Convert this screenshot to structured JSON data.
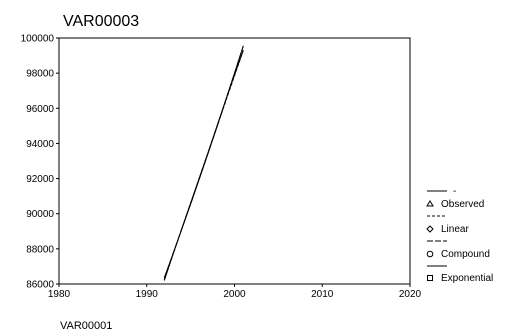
{
  "chart_data": {
    "type": "line",
    "title": "VAR00003",
    "xlabel": "VAR00001",
    "ylabel": "",
    "xlim": [
      1980,
      2020
    ],
    "ylim": [
      86000,
      100000
    ],
    "x_ticks": [
      "1980",
      "1990",
      "2000",
      "2010",
      "2020"
    ],
    "y_ticks": [
      "86000",
      "88000",
      "90000",
      "92000",
      "94000",
      "96000",
      "98000",
      "100000"
    ],
    "grid": false,
    "legend_position": "right",
    "x": [
      1992,
      1993,
      1994,
      1995,
      1996,
      1997,
      1998,
      1999,
      2000,
      2001
    ],
    "series": [
      {
        "name": "Observed",
        "marker": "triangle",
        "line_style": "solid",
        "values": [
          86200,
          87700,
          89150,
          90600,
          92050,
          93500,
          95000,
          96450,
          97900,
          99300
        ]
      },
      {
        "name": "Linear",
        "marker": "diamond",
        "line_style": "dashed",
        "values": [
          86250,
          87700,
          89150,
          90600,
          92050,
          93500,
          94950,
          96400,
          97850,
          99300
        ]
      },
      {
        "name": "Compound",
        "marker": "circle",
        "line_style": "long-dash",
        "values": [
          86350,
          87730,
          89130,
          90550,
          92000,
          93460,
          94950,
          96460,
          97990,
          99550
        ]
      },
      {
        "name": "Exponential",
        "marker": "square",
        "line_style": "solid",
        "values": [
          86350,
          87730,
          89130,
          90550,
          92000,
          93460,
          94950,
          96460,
          97990,
          99550
        ]
      }
    ],
    "legend_top_label": "-"
  }
}
